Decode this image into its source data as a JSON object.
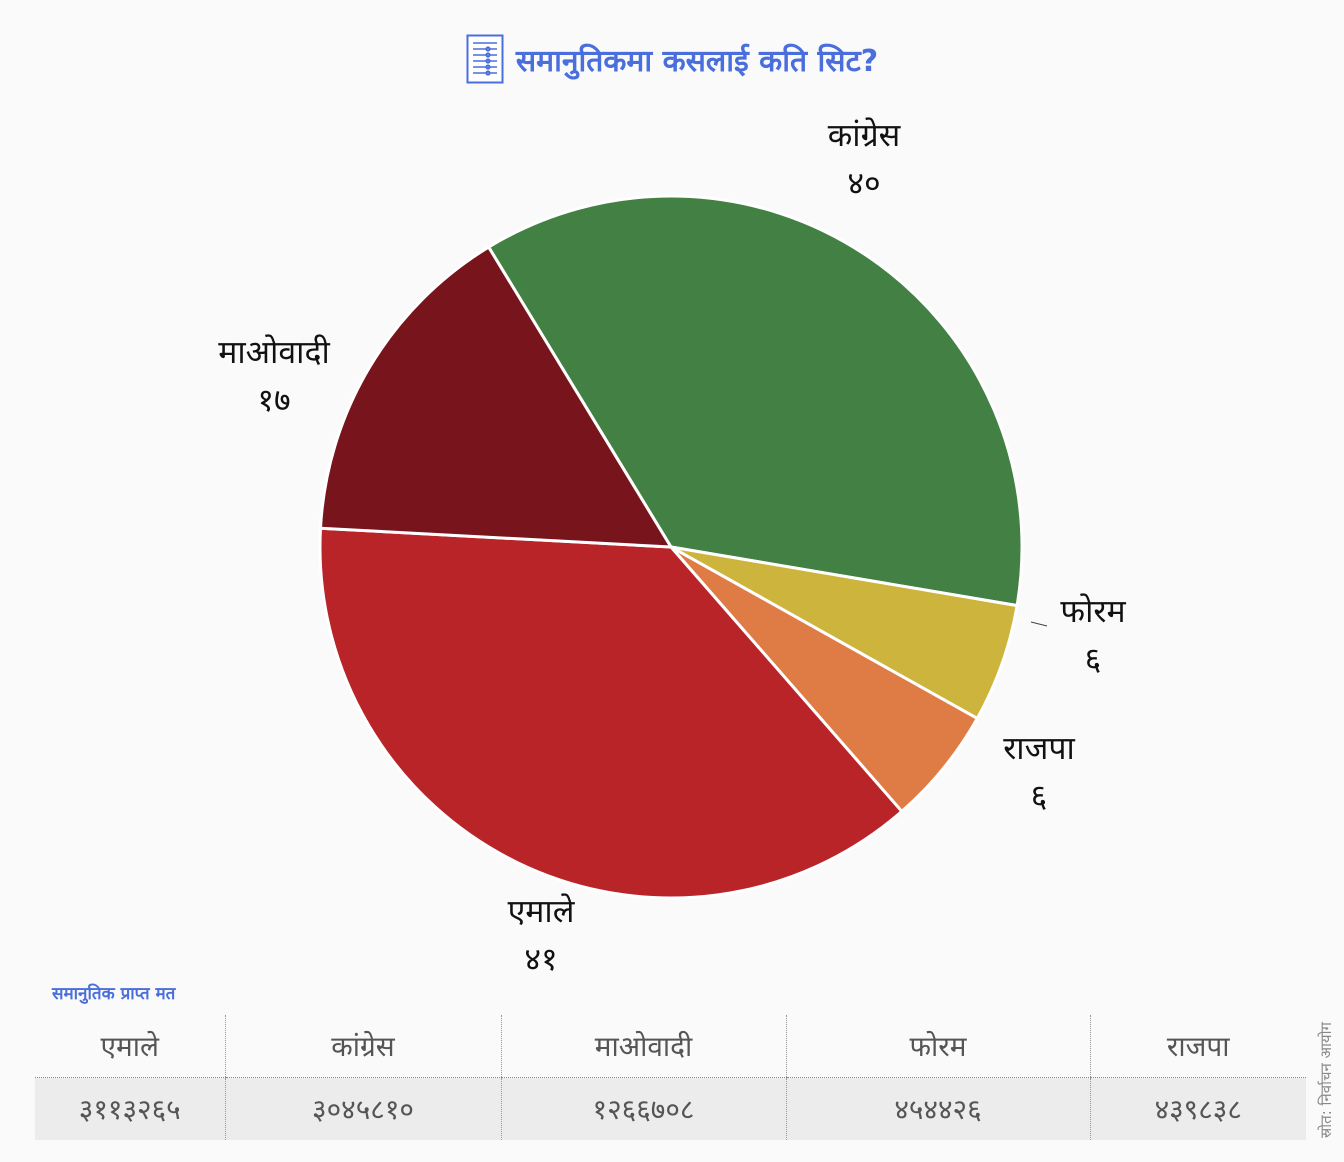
{
  "header": {
    "title": "समानुतिकमा कसलाई कति सिट?",
    "icon": "ballot-list-icon"
  },
  "chart_data": {
    "type": "pie",
    "title": "समानुतिकमा कसलाई कति सिट?",
    "slices": [
      {
        "label": "कांग्रेस",
        "value": 40,
        "display": "४०",
        "color": "#438044"
      },
      {
        "label": "फोरम",
        "value": 6,
        "display": "६",
        "color": "#cdb43d"
      },
      {
        "label": "राजपा",
        "value": 6,
        "display": "६",
        "color": "#df7c45"
      },
      {
        "label": "एमाले",
        "value": 41,
        "display": "४१",
        "color": "#b92429"
      },
      {
        "label": "माओवादी",
        "value": 17,
        "display": "१७",
        "color": "#78141b"
      }
    ]
  },
  "votes_table": {
    "caption": "समानुतिक प्राप्त मत",
    "headers": [
      "एमाले",
      "कांग्रेस",
      "माओवादी",
      "फोरम",
      "राजपा"
    ],
    "values": [
      "३११३२६५",
      "३०४५८१०",
      "१२६६७०८",
      "४५४४२६",
      "४३९८३८"
    ]
  },
  "source": "स्रोत: निर्वाचन आयोग"
}
